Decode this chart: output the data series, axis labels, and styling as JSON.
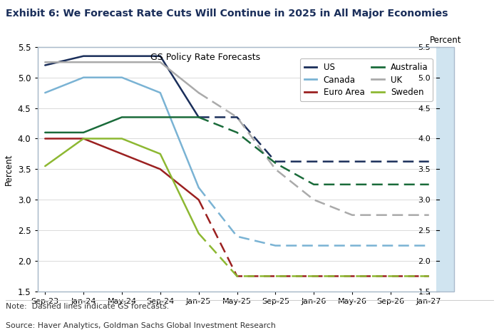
{
  "title": "Exhibit 6: We Forecast Rate Cuts Will Continue in 2025 in All Major Economies",
  "subtitle": "GS Policy Rate Forecasts",
  "ylabel_left": "Percent",
  "ylabel_right": "Percent",
  "note": "Note:  Dashed lines indicate GS forecasts.",
  "source": "Source: Haver Analytics, Goldman Sachs Global Investment Research",
  "exhibit_label": "Exhibit 6",
  "ylim": [
    1.5,
    5.5
  ],
  "yticks": [
    1.5,
    2.0,
    2.5,
    3.0,
    3.5,
    4.0,
    4.5,
    5.0,
    5.5
  ],
  "x_tick_labels": [
    "Sep-23",
    "Jan-24",
    "May-24",
    "Sep-24",
    "Jan-25",
    "May-25",
    "Sep-25",
    "Jan-26",
    "May-26",
    "Sep-26",
    "Jan-27"
  ],
  "series": {
    "US": {
      "color": "#1a2e5a",
      "solid": {
        "x": [
          0,
          1,
          2,
          3,
          4
        ],
        "y": [
          5.2,
          5.35,
          5.35,
          5.35,
          4.35
        ]
      },
      "dashed": {
        "x": [
          4,
          5,
          6,
          7,
          8,
          9,
          10
        ],
        "y": [
          4.35,
          4.35,
          3.625,
          3.625,
          3.625,
          3.625,
          3.625
        ]
      }
    },
    "Euro Area": {
      "color": "#9b2020",
      "solid": {
        "x": [
          0,
          1,
          2,
          3,
          4
        ],
        "y": [
          4.0,
          4.0,
          3.75,
          3.5,
          3.0
        ]
      },
      "dashed": {
        "x": [
          4,
          5,
          6,
          7,
          8,
          9,
          10
        ],
        "y": [
          3.0,
          1.75,
          1.75,
          1.75,
          1.75,
          1.75,
          1.75
        ]
      }
    },
    "UK": {
      "color": "#aaaaaa",
      "solid": {
        "x": [
          0,
          1,
          2,
          3,
          4
        ],
        "y": [
          5.25,
          5.25,
          5.25,
          5.25,
          4.75
        ]
      },
      "dashed": {
        "x": [
          4,
          5,
          6,
          7,
          8,
          9,
          10
        ],
        "y": [
          4.75,
          4.35,
          3.5,
          3.0,
          2.75,
          2.75,
          2.75
        ]
      }
    },
    "Canada": {
      "color": "#7ab3d4",
      "solid": {
        "x": [
          0,
          1,
          2,
          3,
          4
        ],
        "y": [
          4.75,
          5.0,
          5.0,
          4.75,
          3.2
        ]
      },
      "dashed": {
        "x": [
          4,
          5,
          6,
          7,
          8,
          9,
          10
        ],
        "y": [
          3.2,
          2.4,
          2.25,
          2.25,
          2.25,
          2.25,
          2.25
        ]
      }
    },
    "Australia": {
      "color": "#1a6b3a",
      "solid": {
        "x": [
          0,
          1,
          2,
          3,
          4
        ],
        "y": [
          4.1,
          4.1,
          4.35,
          4.35,
          4.35
        ]
      },
      "dashed": {
        "x": [
          4,
          5,
          6,
          7,
          8,
          9,
          10
        ],
        "y": [
          4.35,
          4.1,
          3.6,
          3.25,
          3.25,
          3.25,
          3.25
        ]
      }
    },
    "Sweden": {
      "color": "#8db832",
      "solid": {
        "x": [
          0,
          1,
          2,
          3,
          4
        ],
        "y": [
          3.55,
          4.0,
          4.0,
          3.75,
          2.45
        ]
      },
      "dashed": {
        "x": [
          4,
          5,
          6,
          7,
          8,
          9,
          10
        ],
        "y": [
          2.45,
          1.75,
          1.75,
          1.75,
          1.75,
          1.75,
          1.75
        ]
      }
    }
  },
  "legend_order": [
    "US",
    "Canada",
    "Euro Area",
    "Australia",
    "UK",
    "Sweden"
  ],
  "background_color": "#ffffff",
  "plot_bg_color": "#ffffff",
  "right_strip_color": "#d0e4f0"
}
